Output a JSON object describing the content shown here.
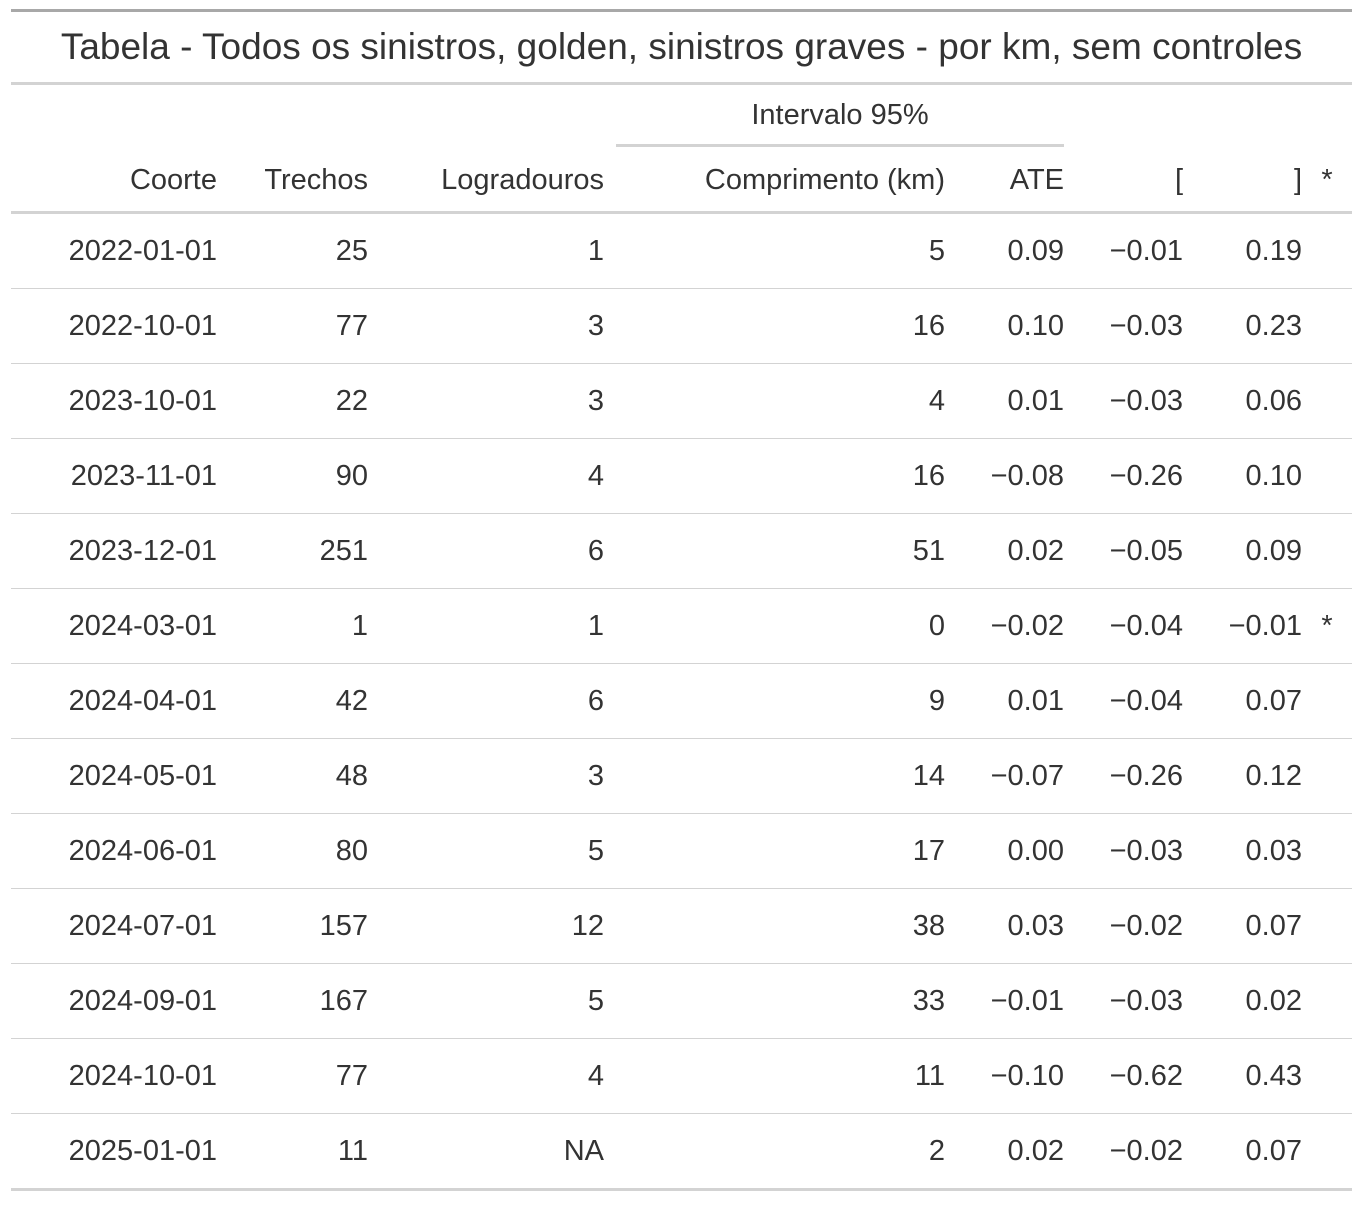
{
  "title": "Tabela - Todos os sinistros, golden, sinistros graves - por km, sem controles",
  "spanner": "Intervalo 95%",
  "columns": {
    "coorte": "Coorte",
    "trechos": "Trechos",
    "logradouros": "Logradouros",
    "comprimento": "Comprimento (km)",
    "ate": "ATE",
    "lower": "[",
    "upper": "]",
    "sig": "*"
  },
  "rows": [
    {
      "coorte": "2022-01-01",
      "trechos": "25",
      "logradouros": "1",
      "comprimento": "5",
      "ate": "0.09",
      "lower": "−0.01",
      "upper": "0.19",
      "sig": ""
    },
    {
      "coorte": "2022-10-01",
      "trechos": "77",
      "logradouros": "3",
      "comprimento": "16",
      "ate": "0.10",
      "lower": "−0.03",
      "upper": "0.23",
      "sig": ""
    },
    {
      "coorte": "2023-10-01",
      "trechos": "22",
      "logradouros": "3",
      "comprimento": "4",
      "ate": "0.01",
      "lower": "−0.03",
      "upper": "0.06",
      "sig": ""
    },
    {
      "coorte": "2023-11-01",
      "trechos": "90",
      "logradouros": "4",
      "comprimento": "16",
      "ate": "−0.08",
      "lower": "−0.26",
      "upper": "0.10",
      "sig": ""
    },
    {
      "coorte": "2023-12-01",
      "trechos": "251",
      "logradouros": "6",
      "comprimento": "51",
      "ate": "0.02",
      "lower": "−0.05",
      "upper": "0.09",
      "sig": ""
    },
    {
      "coorte": "2024-03-01",
      "trechos": "1",
      "logradouros": "1",
      "comprimento": "0",
      "ate": "−0.02",
      "lower": "−0.04",
      "upper": "−0.01",
      "sig": "*"
    },
    {
      "coorte": "2024-04-01",
      "trechos": "42",
      "logradouros": "6",
      "comprimento": "9",
      "ate": "0.01",
      "lower": "−0.04",
      "upper": "0.07",
      "sig": ""
    },
    {
      "coorte": "2024-05-01",
      "trechos": "48",
      "logradouros": "3",
      "comprimento": "14",
      "ate": "−0.07",
      "lower": "−0.26",
      "upper": "0.12",
      "sig": ""
    },
    {
      "coorte": "2024-06-01",
      "trechos": "80",
      "logradouros": "5",
      "comprimento": "17",
      "ate": "0.00",
      "lower": "−0.03",
      "upper": "0.03",
      "sig": ""
    },
    {
      "coorte": "2024-07-01",
      "trechos": "157",
      "logradouros": "12",
      "comprimento": "38",
      "ate": "0.03",
      "lower": "−0.02",
      "upper": "0.07",
      "sig": ""
    },
    {
      "coorte": "2024-09-01",
      "trechos": "167",
      "logradouros": "5",
      "comprimento": "33",
      "ate": "−0.01",
      "lower": "−0.03",
      "upper": "0.02",
      "sig": ""
    },
    {
      "coorte": "2024-10-01",
      "trechos": "77",
      "logradouros": "4",
      "comprimento": "11",
      "ate": "−0.10",
      "lower": "−0.62",
      "upper": "0.43",
      "sig": ""
    },
    {
      "coorte": "2025-01-01",
      "trechos": "11",
      "logradouros": "NA",
      "comprimento": "2",
      "ate": "0.02",
      "lower": "−0.02",
      "upper": "0.07",
      "sig": ""
    }
  ]
}
